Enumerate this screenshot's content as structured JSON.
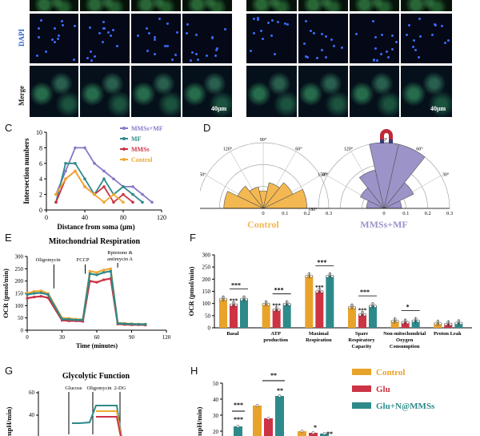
{
  "panel_a": {
    "row_labels": {
      "dapi": "DAPI",
      "merge": "Merge"
    },
    "scale_left": "40μm",
    "scale_right": "40μm"
  },
  "panel_c": {
    "letter": "C",
    "chart_data": {
      "type": "line",
      "xlabel": "Distance from soma (μm)",
      "ylabel": "Intersection numbers",
      "xlim": [
        0,
        120
      ],
      "ylim": [
        0,
        10
      ],
      "xticks": [
        "0",
        "40",
        "80",
        "120"
      ],
      "yticks": [
        "0",
        "2",
        "4",
        "6",
        "8",
        "10"
      ],
      "legend_position": "top-right",
      "series": [
        {
          "name": "MMSs+MF",
          "color": "#8878c8",
          "x": [
            10,
            20,
            30,
            40,
            50,
            60,
            70,
            80,
            90,
            100,
            110
          ],
          "y": [
            2,
            5,
            8,
            8,
            6,
            5,
            4,
            3,
            3,
            2,
            1
          ]
        },
        {
          "name": "MF",
          "color": "#2e8a8a",
          "x": [
            10,
            20,
            30,
            40,
            50,
            60,
            70,
            80,
            90,
            100
          ],
          "y": [
            1,
            6,
            6,
            4,
            2,
            4,
            2,
            3,
            2,
            1
          ]
        },
        {
          "name": "MMSs",
          "color": "#cc3344",
          "x": [
            10,
            20,
            30,
            40,
            50,
            60,
            70,
            80,
            90
          ],
          "y": [
            1,
            4,
            5,
            3,
            2,
            3,
            1,
            2,
            1
          ]
        },
        {
          "name": "Control",
          "color": "#f0a830",
          "x": [
            10,
            20,
            30,
            40,
            50,
            60,
            70,
            80
          ],
          "y": [
            2,
            4,
            5,
            3,
            2,
            1,
            2,
            1
          ]
        }
      ]
    }
  },
  "panel_d": {
    "letter": "D",
    "angle_labels": [
      "90°",
      "60°",
      "30°",
      "120°",
      "150°",
      "180°"
    ],
    "radial_ticks": [
      "0",
      "0.1",
      "0.2",
      "0.3"
    ],
    "charts": [
      {
        "title": "Control",
        "color": "#f3b851",
        "values": [
          0.2,
          0.15,
          0.12,
          0.08,
          0.1,
          0.13,
          0.18
        ]
      },
      {
        "title": "MMSs+MF",
        "color": "#9c93c8",
        "values": [
          0.08,
          0.15,
          0.3,
          0.3,
          0.18,
          0.12,
          0.08
        ]
      }
    ]
  },
  "panel_e": {
    "letter": "E",
    "title": "Mitochondrial Respiration",
    "ylabel": "OCR (pmol/min)",
    "xlabel": "Time (minutes)",
    "annotations": [
      "Oligomycin",
      "FCCP",
      "Rptenone &",
      "antimycin A"
    ],
    "xticks": [
      "0",
      "30",
      "60",
      "90",
      "120"
    ],
    "yticks": [
      "0",
      "50",
      "100",
      "150",
      "200",
      "250",
      "300"
    ],
    "chart_data": {
      "type": "line",
      "xlim": [
        0,
        120
      ],
      "ylim": [
        0,
        300
      ],
      "series": [
        {
          "name": "Control",
          "color": "#f0a830",
          "x": [
            0,
            6,
            12,
            18,
            30,
            36,
            42,
            48,
            54,
            60,
            66,
            72,
            78,
            84,
            90,
            96,
            102
          ],
          "y": [
            150,
            158,
            160,
            150,
            50,
            48,
            45,
            44,
            240,
            235,
            245,
            250,
            30,
            28,
            26,
            25,
            25
          ]
        },
        {
          "name": "Glu",
          "color": "#cc3344",
          "x": [
            0,
            6,
            12,
            18,
            30,
            36,
            42,
            48,
            54,
            60,
            66,
            72,
            78,
            84,
            90,
            96,
            102
          ],
          "y": [
            130,
            135,
            138,
            132,
            40,
            38,
            38,
            36,
            200,
            195,
            205,
            210,
            25,
            23,
            22,
            22,
            21
          ]
        },
        {
          "name": "Glu+N@MMSs",
          "color": "#2e8a8a",
          "x": [
            0,
            6,
            12,
            18,
            30,
            36,
            42,
            48,
            54,
            60,
            66,
            72,
            78,
            84,
            90,
            96,
            102
          ],
          "y": [
            145,
            150,
            152,
            145,
            45,
            44,
            42,
            42,
            230,
            225,
            235,
            240,
            28,
            26,
            25,
            24,
            24
          ]
        }
      ]
    }
  },
  "panel_f": {
    "letter": "F",
    "ylabel": "OCR (pmol/min)",
    "yticks": [
      "0",
      "50",
      "100",
      "150",
      "200",
      "250",
      "300"
    ],
    "chart_data": {
      "type": "bar",
      "ylim": [
        0,
        300
      ],
      "categories": [
        "Basal",
        "ATP production",
        "Maximal Respiration",
        "Spare Respiratory Capacity",
        "Non-mitochondrial Oxygen Consumption",
        "Proton Leak"
      ],
      "category_lines": [
        [
          "Basal"
        ],
        [
          "ATP",
          "production"
        ],
        [
          "Maximal",
          "Respiration"
        ],
        [
          "Spare",
          "Respiratory",
          "Capacity"
        ],
        [
          "Non-mitochondrial",
          "Oxygen",
          "Consumption"
        ],
        [
          "Proton Leak"
        ]
      ],
      "series": [
        {
          "name": "Control",
          "color": "#e8a32a",
          "values": [
            120,
            100,
            215,
            87,
            30,
            20
          ]
        },
        {
          "name": "Glu",
          "color": "#cc3344",
          "values": [
            97,
            77,
            152,
            57,
            25,
            18
          ]
        },
        {
          "name": "Glu+N@MMSs",
          "color": "#2e8a8a",
          "values": [
            120,
            100,
            215,
            92,
            31,
            22
          ]
        }
      ],
      "sig_top": [
        "***",
        "***",
        "***",
        "***",
        "*",
        ""
      ],
      "sig_glu": [
        "***",
        "***",
        "***",
        "***",
        "",
        ""
      ]
    }
  },
  "panel_g": {
    "letter": "G",
    "title": "Glycolytic Function",
    "annotations": [
      "Glucose",
      "Oligomycin",
      "2-DG"
    ],
    "ylabel": "(mpH/min)",
    "yticks": [
      "60",
      "40"
    ]
  },
  "panel_h": {
    "letter": "H",
    "ylabel": "(mpH/min)",
    "yticks": [
      "50",
      "40",
      "30",
      "20"
    ],
    "sig": [
      "***",
      "***",
      "**",
      "**",
      "*",
      "**"
    ],
    "legend": [
      {
        "label": "Control",
        "color": "#e8a32a"
      },
      {
        "label": "Glu",
        "color": "#cc3344"
      },
      {
        "label": "Glu+N@MMSs",
        "color": "#2e8a8a"
      }
    ]
  }
}
